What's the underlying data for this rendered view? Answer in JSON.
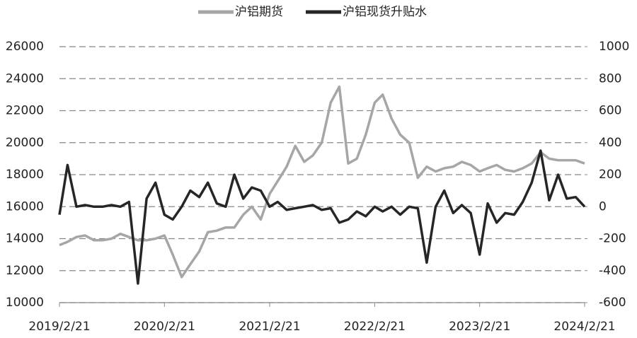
{
  "chart_data": {
    "type": "line",
    "x": [
      "2019/2/21",
      "2019/3/21",
      "2019/4/21",
      "2019/5/21",
      "2019/6/21",
      "2019/7/21",
      "2019/8/21",
      "2019/9/21",
      "2019/10/21",
      "2019/11/21",
      "2019/12/21",
      "2020/1/21",
      "2020/2/21",
      "2020/3/21",
      "2020/4/21",
      "2020/5/21",
      "2020/6/21",
      "2020/7/21",
      "2020/8/21",
      "2020/9/21",
      "2020/10/21",
      "2020/11/21",
      "2020/12/21",
      "2021/1/21",
      "2021/2/21",
      "2021/3/21",
      "2021/4/21",
      "2021/5/21",
      "2021/6/21",
      "2021/7/21",
      "2021/8/21",
      "2021/9/21",
      "2021/10/21",
      "2021/11/21",
      "2021/12/21",
      "2022/1/21",
      "2022/2/21",
      "2022/3/21",
      "2022/4/21",
      "2022/5/21",
      "2022/6/21",
      "2022/7/21",
      "2022/8/21",
      "2022/9/21",
      "2022/10/21",
      "2022/11/21",
      "2022/12/21",
      "2023/1/21",
      "2023/2/21",
      "2023/3/21",
      "2023/4/21",
      "2023/5/21",
      "2023/6/21",
      "2023/7/21",
      "2023/8/21",
      "2023/9/21",
      "2023/10/21",
      "2023/11/21",
      "2023/12/21",
      "2024/1/21",
      "2024/2/21"
    ],
    "series": [
      {
        "name": "沪铝期货",
        "color": "#a6a6a6",
        "axis": "y",
        "values": [
          13600,
          13800,
          14100,
          14200,
          13900,
          13900,
          14000,
          14300,
          14100,
          13900,
          13900,
          14000,
          14200,
          13000,
          11600,
          12400,
          13200,
          14400,
          14500,
          14700,
          14700,
          15500,
          16000,
          15200,
          16800,
          17600,
          18500,
          19800,
          18800,
          19200,
          20000,
          22500,
          23500,
          18700,
          19000,
          20500,
          22500,
          23000,
          21500,
          20500,
          20000,
          17800,
          18500,
          18200,
          18400,
          18500,
          18800,
          18600,
          18200,
          18400,
          18600,
          18300,
          18200,
          18400,
          18700,
          19400,
          19000,
          18900,
          18900,
          18900,
          18700
        ]
      },
      {
        "name": "沪铝现货升贴水",
        "color": "#262626",
        "axis": "y2",
        "values": [
          -50,
          260,
          0,
          10,
          0,
          0,
          10,
          0,
          30,
          -480,
          50,
          150,
          -50,
          -80,
          0,
          100,
          60,
          150,
          20,
          0,
          200,
          50,
          120,
          100,
          0,
          30,
          -20,
          -10,
          0,
          10,
          -20,
          -10,
          -100,
          -80,
          -30,
          -60,
          0,
          -30,
          0,
          -50,
          0,
          -10,
          -350,
          0,
          100,
          -40,
          10,
          -40,
          -300,
          20,
          -100,
          -40,
          -50,
          30,
          150,
          350,
          40,
          200,
          50,
          60,
          0
        ]
      }
    ],
    "xlim": [
      "2019/2/21",
      "2024/2/21"
    ],
    "xticks": [
      "2019/2/21",
      "2020/2/21",
      "2021/2/21",
      "2022/2/21",
      "2023/2/21",
      "2024/2/21"
    ],
    "ylim": [
      10000,
      26000
    ],
    "yticks": [
      10000,
      12000,
      14000,
      16000,
      18000,
      20000,
      22000,
      24000,
      26000
    ],
    "y2lim": [
      -600,
      1000
    ],
    "y2ticks": [
      -600,
      -400,
      -200,
      0,
      200,
      400,
      600,
      800,
      1000
    ],
    "grid": true,
    "legend": "top"
  }
}
